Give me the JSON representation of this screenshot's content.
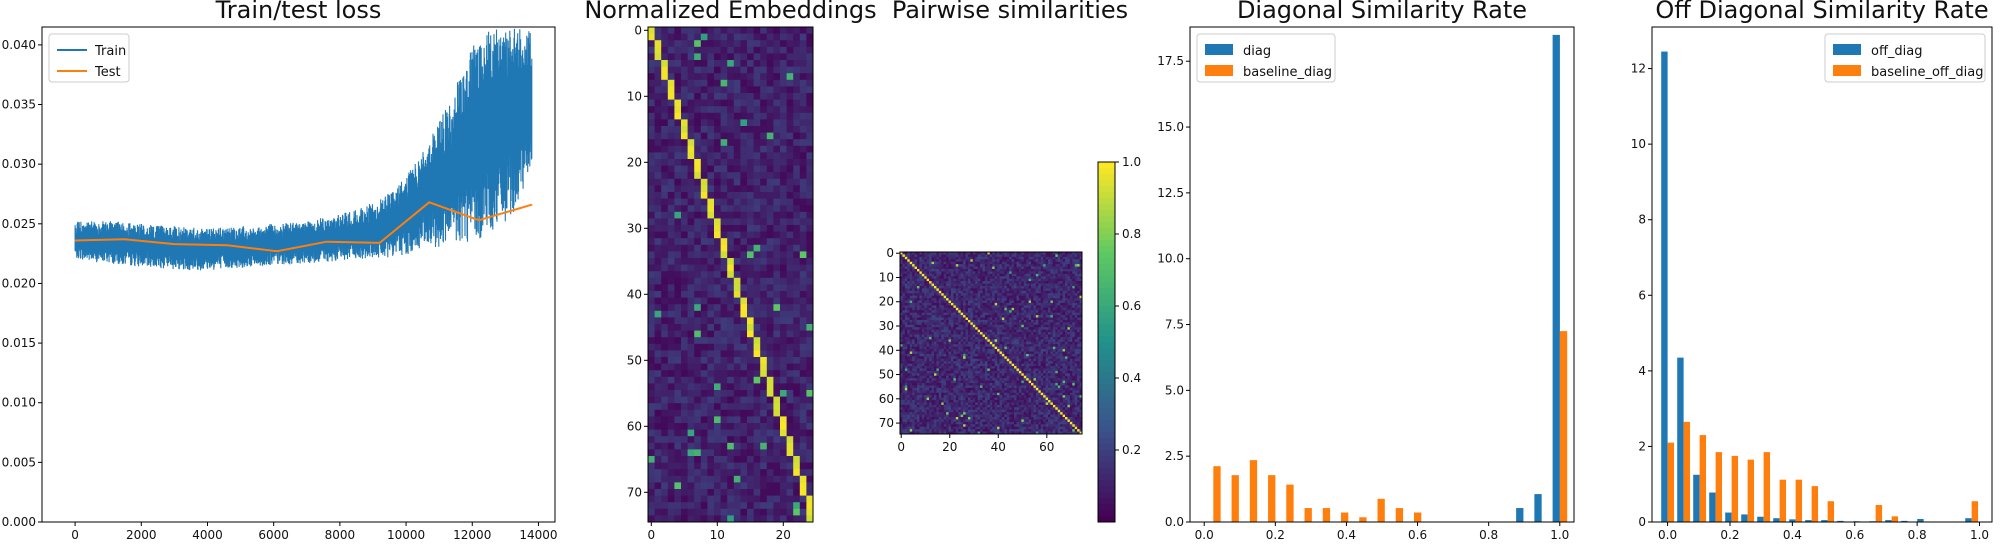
{
  "colors": {
    "blue": "#1f77b4",
    "orange": "#ff7f0e",
    "grid": "none",
    "axis": "#000000"
  },
  "colormap": "viridis",
  "chart_data": [
    {
      "type": "line",
      "title": "Train/test loss",
      "xlabel": "",
      "ylabel": "",
      "xlim": [
        -1000,
        14500
      ],
      "ylim": [
        0.0,
        0.0415
      ],
      "xticks": [
        0,
        2000,
        4000,
        6000,
        8000,
        10000,
        12000,
        14000
      ],
      "yticks": [
        0.0,
        0.005,
        0.01,
        0.015,
        0.02,
        0.025,
        0.03,
        0.035,
        0.04
      ],
      "ytick_labels": [
        "0.000",
        "0.005",
        "0.010",
        "0.015",
        "0.020",
        "0.025",
        "0.030",
        "0.035",
        "0.040"
      ],
      "legend": {
        "position": "top-left",
        "entries": [
          "Train",
          "Test"
        ]
      },
      "series": [
        {
          "name": "Train",
          "color": "#1f77b4",
          "style": "noisy band",
          "x": [
            0,
            500,
            1000,
            1500,
            2000,
            2500,
            3000,
            3500,
            4000,
            4500,
            5000,
            5500,
            6000,
            6500,
            7000,
            7500,
            8000,
            8500,
            9000,
            9500,
            10000,
            10500,
            11000,
            11500,
            12000,
            12500,
            13000,
            13500,
            13800
          ],
          "low": [
            0.0221,
            0.0218,
            0.0217,
            0.0215,
            0.0214,
            0.0213,
            0.0212,
            0.0211,
            0.0211,
            0.0212,
            0.0213,
            0.0214,
            0.0215,
            0.0216,
            0.0217,
            0.0218,
            0.0219,
            0.022,
            0.0221,
            0.0222,
            0.0224,
            0.0227,
            0.023,
            0.0232,
            0.0235,
            0.024,
            0.025,
            0.027,
            0.03
          ],
          "high": [
            0.0252,
            0.0252,
            0.0253,
            0.0251,
            0.025,
            0.0249,
            0.0248,
            0.0247,
            0.0246,
            0.0247,
            0.0248,
            0.0249,
            0.025,
            0.0251,
            0.0253,
            0.0255,
            0.0258,
            0.0262,
            0.0268,
            0.0276,
            0.029,
            0.031,
            0.0335,
            0.0365,
            0.04,
            0.0415,
            0.0415,
            0.0415,
            0.0415
          ]
        },
        {
          "name": "Test",
          "color": "#ff7f0e",
          "x": [
            0,
            1500,
            3000,
            4600,
            6100,
            7600,
            9200,
            10700,
            12200,
            13800
          ],
          "y": [
            0.0236,
            0.0237,
            0.0233,
            0.0232,
            0.0227,
            0.0235,
            0.0234,
            0.0268,
            0.0253,
            0.0266
          ]
        }
      ]
    },
    {
      "type": "heatmap",
      "title": "Normalized Embeddings",
      "rows": 75,
      "cols": 25,
      "xticks": [
        0,
        10,
        20
      ],
      "yticks": [
        0,
        10,
        20,
        30,
        40,
        50,
        60,
        70
      ],
      "pattern": "near-diagonal band: row r is brightest at column round(r/3)",
      "vmin": 0,
      "vmax": 1
    },
    {
      "type": "heatmap",
      "title": "Pairwise similarities",
      "rows": 75,
      "cols": 75,
      "xticks": [
        0,
        20,
        40,
        60
      ],
      "yticks": [
        0,
        10,
        20,
        30,
        40,
        50,
        60,
        70
      ],
      "pattern": "diagonal = 1.0, sparse off-diagonal similarities",
      "colorbar": {
        "min": 0.0,
        "max": 1.0,
        "ticks": [
          0.2,
          0.4,
          0.6,
          0.8,
          1.0
        ],
        "tick_labels": [
          "0.2",
          "0.4",
          "0.6",
          "0.8",
          "1.0"
        ]
      }
    },
    {
      "type": "bar",
      "title": "Diagonal Similarity Rate",
      "xlim": [
        -0.04,
        1.04
      ],
      "ylim": [
        0,
        18.8
      ],
      "xticks": [
        0.0,
        0.2,
        0.4,
        0.6,
        0.8,
        1.0
      ],
      "xtick_labels": [
        "0.0",
        "0.2",
        "0.4",
        "0.6",
        "0.8",
        "1.0"
      ],
      "yticks": [
        0.0,
        2.5,
        5.0,
        7.5,
        10.0,
        12.5,
        15.0,
        17.5
      ],
      "ytick_labels": [
        "0.0",
        "2.5",
        "5.0",
        "7.5",
        "10.0",
        "12.5",
        "15.0",
        "17.5"
      ],
      "legend": {
        "position": "top-left",
        "entries": [
          "diag",
          "baseline_diag"
        ]
      },
      "bin_width": 0.0513,
      "bin_starts": [
        0.0,
        0.0513,
        0.1026,
        0.1539,
        0.2052,
        0.2565,
        0.3078,
        0.3591,
        0.4104,
        0.4617,
        0.513,
        0.5643,
        0.6156,
        0.6669,
        0.7182,
        0.7695,
        0.8208,
        0.8721,
        0.9234,
        0.9747
      ],
      "series": [
        {
          "name": "diag",
          "color": "#1f77b4",
          "values": [
            0,
            0,
            0,
            0,
            0,
            0,
            0,
            0,
            0,
            0,
            0,
            0,
            0,
            0,
            0,
            0,
            0,
            0.53,
            1.06,
            18.5
          ]
        },
        {
          "name": "baseline_diag",
          "color": "#ff7f0e",
          "values": [
            2.12,
            1.78,
            2.35,
            1.78,
            1.42,
            0.53,
            0.53,
            0.36,
            0.18,
            0.88,
            0.53,
            0.36,
            0,
            0,
            0,
            0,
            0,
            0,
            0,
            7.25
          ]
        }
      ]
    },
    {
      "type": "bar",
      "title": "Off Diagonal Similarity Rate",
      "xlim": [
        -0.05,
        1.04
      ],
      "ylim": [
        0,
        13.1
      ],
      "xticks": [
        0.0,
        0.2,
        0.4,
        0.6,
        0.8,
        1.0
      ],
      "xtick_labels": [
        "0.0",
        "0.2",
        "0.4",
        "0.6",
        "0.8",
        "1.0"
      ],
      "yticks": [
        0,
        2,
        4,
        6,
        8,
        10,
        12
      ],
      "ytick_labels": [
        "0",
        "2",
        "4",
        "6",
        "8",
        "10",
        "12"
      ],
      "legend": {
        "position": "top-right",
        "entries": [
          "off_diag",
          "baseline_off_diag"
        ]
      },
      "bin_width": 0.0513,
      "bin_starts": [
        -0.0256,
        0.0257,
        0.077,
        0.1283,
        0.1796,
        0.2309,
        0.2822,
        0.3335,
        0.3848,
        0.4361,
        0.4874,
        0.5387,
        0.59,
        0.6413,
        0.6926,
        0.7439,
        0.7952,
        0.8465,
        0.8978,
        0.9491
      ],
      "series": [
        {
          "name": "off_diag",
          "color": "#1f77b4",
          "values": [
            12.45,
            4.35,
            1.25,
            0.78,
            0.25,
            0.2,
            0.14,
            0.1,
            0.07,
            0.05,
            0.05,
            0.03,
            0.02,
            0.02,
            0.05,
            0.03,
            0.08,
            0.01,
            0.01,
            0.1
          ]
        },
        {
          "name": "baseline_off_diag",
          "color": "#ff7f0e",
          "values": [
            2.1,
            2.65,
            2.3,
            1.85,
            1.75,
            1.65,
            1.85,
            1.12,
            1.12,
            0.95,
            0.55,
            0,
            0,
            0.45,
            0.15,
            0,
            0,
            0,
            0,
            0.55
          ]
        }
      ]
    }
  ]
}
